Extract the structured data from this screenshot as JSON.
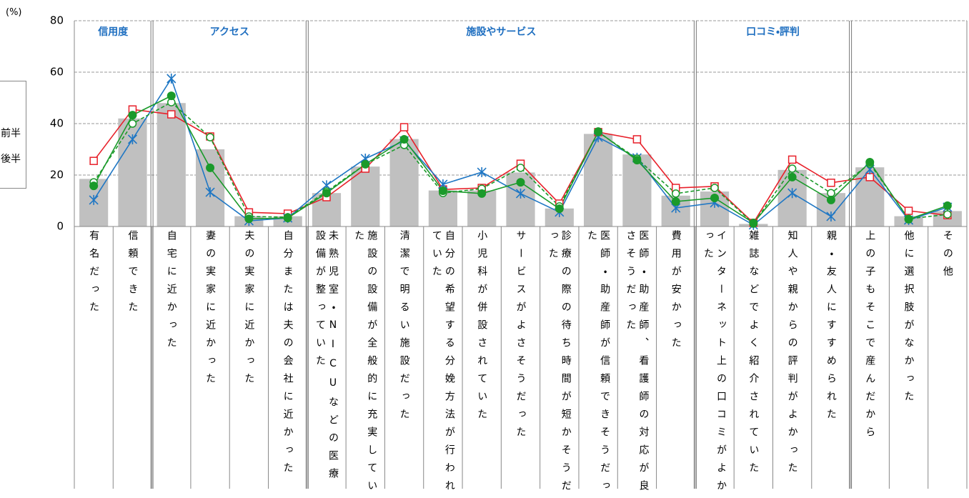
{
  "chart_data": {
    "type": "bar-line",
    "y_unit_label": "(%)",
    "ylim": [
      0,
      80
    ],
    "yticks": [
      0,
      20,
      40,
      60,
      80
    ],
    "grid": true,
    "groups": [
      "信用度",
      "アクセス",
      "施設やサービス",
      "口コミ・評判",
      null
    ],
    "categories": [
      "有名だった",
      "信頼できた",
      "自宅に近かった",
      "妻の実家に近かった",
      "夫の実家に近かった",
      "自分または夫の会社に近かった",
      "未熟児室・NICUなどの医療設備が整っていた",
      "施設の設備が全般的に充実していた",
      "清潔で明るい施設だった",
      "自分の希望する分娩方法が行われていた",
      "小児科が併設されていた",
      "サービスがよさそうだった",
      "診療の際の待ち時間が短かそうだった",
      "医師・助産師が信頼できそうだった",
      "医師・助産師、看護師の対応が良さそうだった",
      "費用が安かった",
      "インターネット上の口コミがよかった",
      "雑誌などでよく紹介されていた",
      "知人や親からの評判がよかった",
      "親・友人にすすめられた",
      "上の子もそこで産んだから",
      "他に選択肢がなかった",
      "その他"
    ],
    "bars": {
      "color": "#c0c0c0",
      "values": [
        18.5,
        42,
        48,
        30,
        4,
        4,
        13,
        23.3,
        34,
        14,
        14,
        21,
        7,
        36,
        28,
        12,
        13.6,
        1,
        22,
        13,
        23,
        4,
        6
      ]
    },
    "series": [
      {
        "name": "前半",
        "color": "#e8202a",
        "marker": "square",
        "dashed": false,
        "values": [
          25.5,
          45.5,
          43.6,
          35,
          5.5,
          5,
          11.4,
          22.5,
          38.6,
          14.4,
          15,
          24.4,
          8.9,
          36.7,
          33.9,
          15,
          15.6,
          1.4,
          26,
          17,
          19.2,
          6.1,
          4.4
        ]
      },
      {
        "name": "後半",
        "color": "#1f77c4",
        "marker": "cross",
        "dashed": false,
        "values": [
          10.3,
          33.9,
          57.5,
          13.3,
          2.2,
          3.3,
          16,
          26.4,
          33.3,
          16.4,
          21.1,
          12.8,
          5.6,
          34.7,
          26.7,
          7.2,
          9.2,
          0.6,
          13,
          3.9,
          22.2,
          2.5,
          7.5
        ]
      },
      {
        "color": "#1a9a2a",
        "marker": "circle-open",
        "dashed": true,
        "values": [
          17.2,
          40,
          48.3,
          34.7,
          3.9,
          3.6,
          13.6,
          24.2,
          31.7,
          13,
          14.7,
          22.8,
          7.8,
          36.7,
          26.4,
          12.8,
          15,
          1.1,
          22.5,
          13,
          24.4,
          3,
          4.7
        ]
      },
      {
        "color": "#1a9a2a",
        "marker": "circle",
        "dashed": false,
        "values": [
          15.8,
          43.3,
          50.8,
          22.8,
          3,
          3.3,
          13,
          24.2,
          33.9,
          13.9,
          12.8,
          17.2,
          6.9,
          36.9,
          25.8,
          9.7,
          11.1,
          1.4,
          19.2,
          10.3,
          25,
          2.8,
          8.1
        ]
      }
    ]
  }
}
